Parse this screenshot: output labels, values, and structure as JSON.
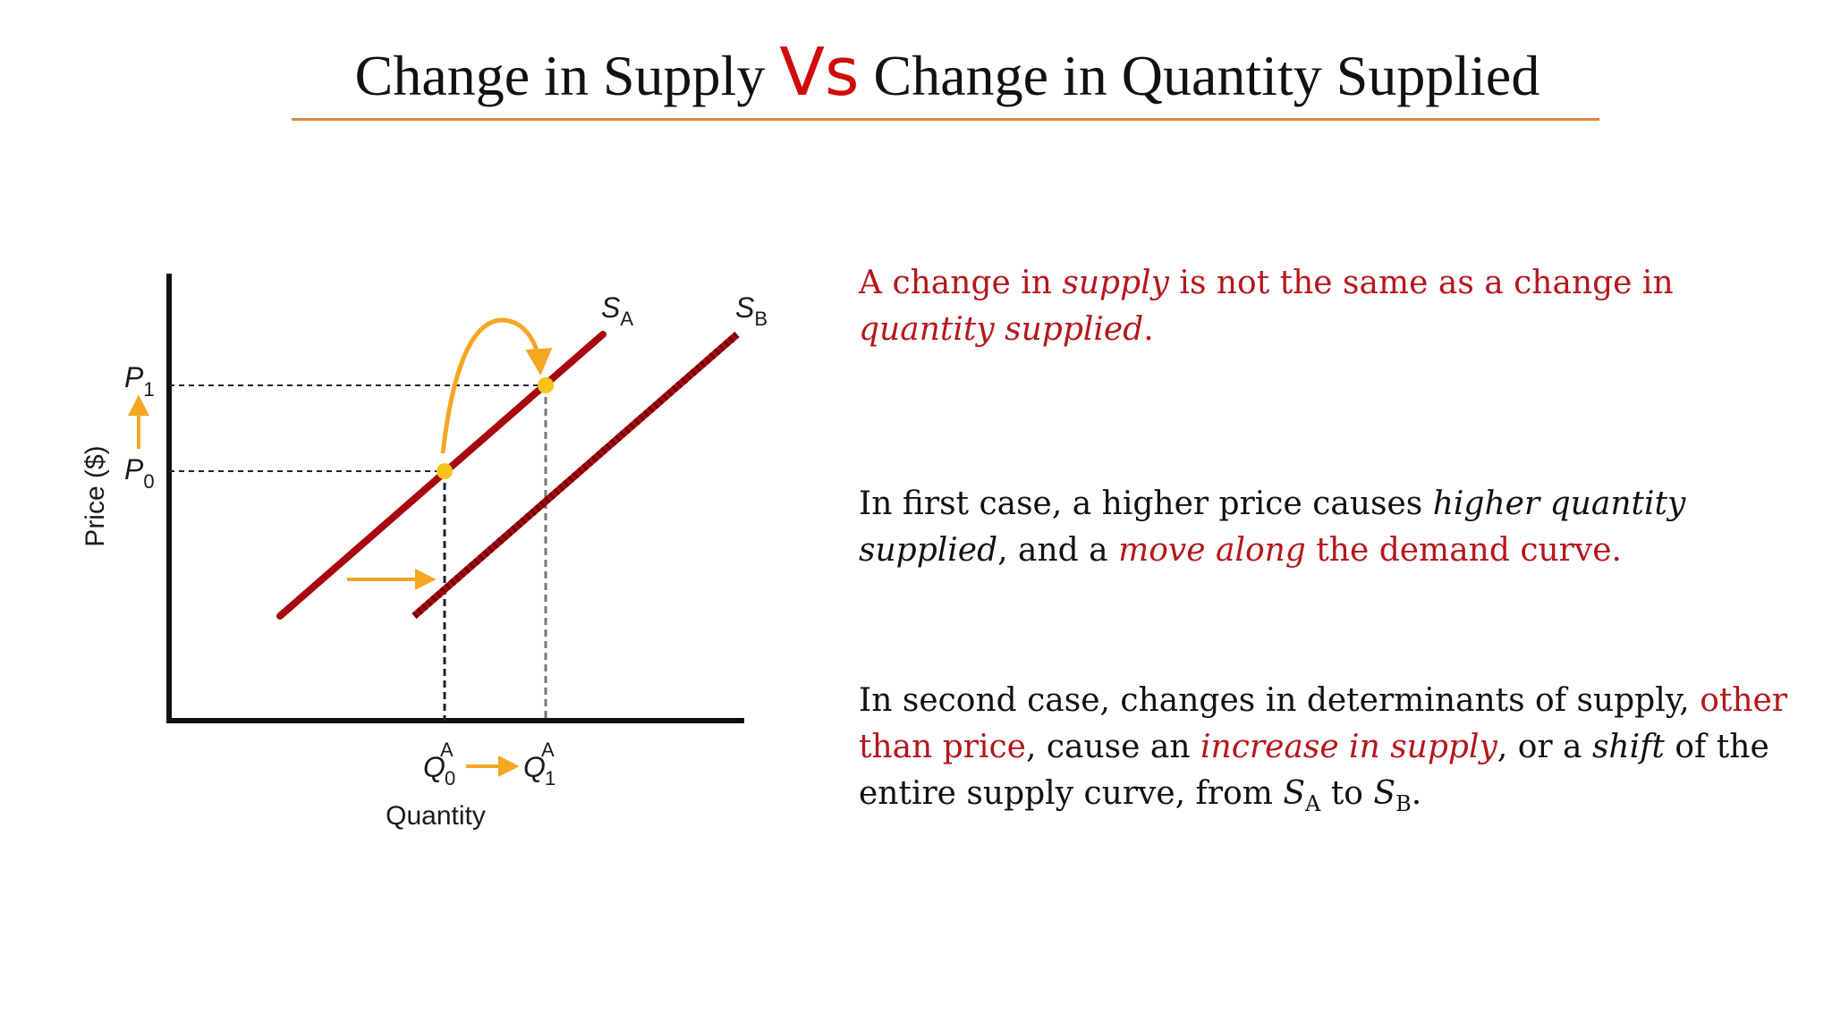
{
  "slide": {
    "title": {
      "part1": "Change in Supply ",
      "vs": "Vs",
      "part2": " Change in Quantity Supplied"
    },
    "colors": {
      "accent_red": "#b5161c",
      "vs_red": "#d10a0a",
      "rule_orange": "#e2863d",
      "arrow_orange": "#f5a623",
      "point_yellow": "#f5c518",
      "curve_red": "#a8080e"
    }
  },
  "diagram": {
    "y_axis_label": "Price ($)",
    "x_axis_label": "Quantity",
    "p1": {
      "letter": "P",
      "sub": "1"
    },
    "p0": {
      "letter": "P",
      "sub": "0"
    },
    "q0": {
      "letter": "Q",
      "sub": "0",
      "sup": "A"
    },
    "q1": {
      "letter": "Q",
      "sub": "1",
      "sup": "A"
    },
    "sa": {
      "letter": "S",
      "sub": "A"
    },
    "sb": {
      "letter": "S",
      "sub": "B"
    }
  },
  "para1": {
    "t1": "A change in ",
    "t2": "supply",
    "t3": " is not the same as a change in ",
    "t4": "quantity supplied",
    "t5": "."
  },
  "para2": {
    "t1": "In first case, a higher price causes ",
    "t2": "higher quantity supplied",
    "t3": ", and a ",
    "t4": "move along",
    "t5": " the demand curve."
  },
  "para3": {
    "t1": "In second case, changes in determinants of supply, ",
    "t2": "other than price",
    "t3": ", cause an ",
    "t4": "increase in supply",
    "t5": ", or a ",
    "t6": "shift",
    "t7": " of the entire supply curve, from ",
    "s_a_letter": "S",
    "s_a_sub": "A",
    "t8": " to ",
    "s_b_letter": "S",
    "s_b_sub": "B",
    "t9": "."
  }
}
